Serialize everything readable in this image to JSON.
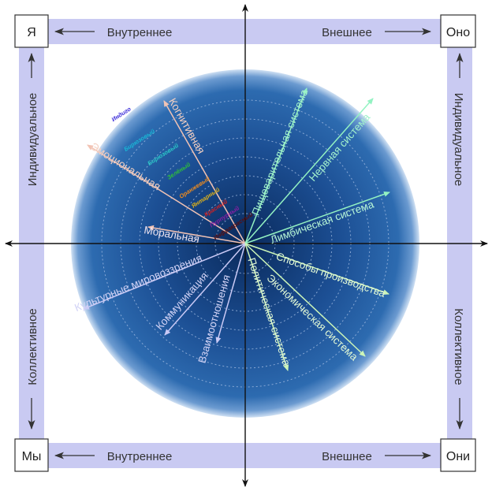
{
  "corners": {
    "top_left": "Я",
    "top_right": "Оно",
    "bottom_left": "Мы",
    "bottom_right": "Они"
  },
  "bands": {
    "top_left_label": "Внутреннее",
    "top_right_label": "Внешнее",
    "bottom_left_label": "Внутреннее",
    "bottom_right_label": "Внешнее",
    "left_top_label": "Индивидуальное",
    "left_bottom_label": "Коллективное",
    "right_top_label": "Индивидуальное",
    "right_bottom_label": "Коллективное"
  },
  "colors": {
    "band": "#c9caf2",
    "circle_outer": "#2a66ab",
    "circle_inner": "#0a2a5c",
    "axis": "#111111",
    "upper_left_line": "#f2c3b4",
    "upper_right_line": "#93f2c2",
    "lower_left_line": "#c9c9f5",
    "lower_right_line": "#ccf5b8",
    "text_light": "#e4e6ff"
  },
  "quadrant_lines": {
    "upper_left": [
      "Когнитивная",
      "Эмоциональная",
      "Моральная"
    ],
    "upper_right": [
      "Пищеварительная система",
      "Нервная система",
      "Лимбическая система"
    ],
    "lower_left": [
      "Культурные мировоззрения",
      "Коммуникация",
      "Взаимоотношения"
    ],
    "lower_right": [
      "Способы производства",
      "Политическая система",
      "Экономическая система"
    ]
  },
  "levels": [
    "Индиго",
    "Бирюзовый",
    "Бирюзовый",
    "Зелёный",
    "Оранжевый",
    "Янтарный",
    "Красный",
    "Пурпурный",
    "Инфракрасный"
  ]
}
